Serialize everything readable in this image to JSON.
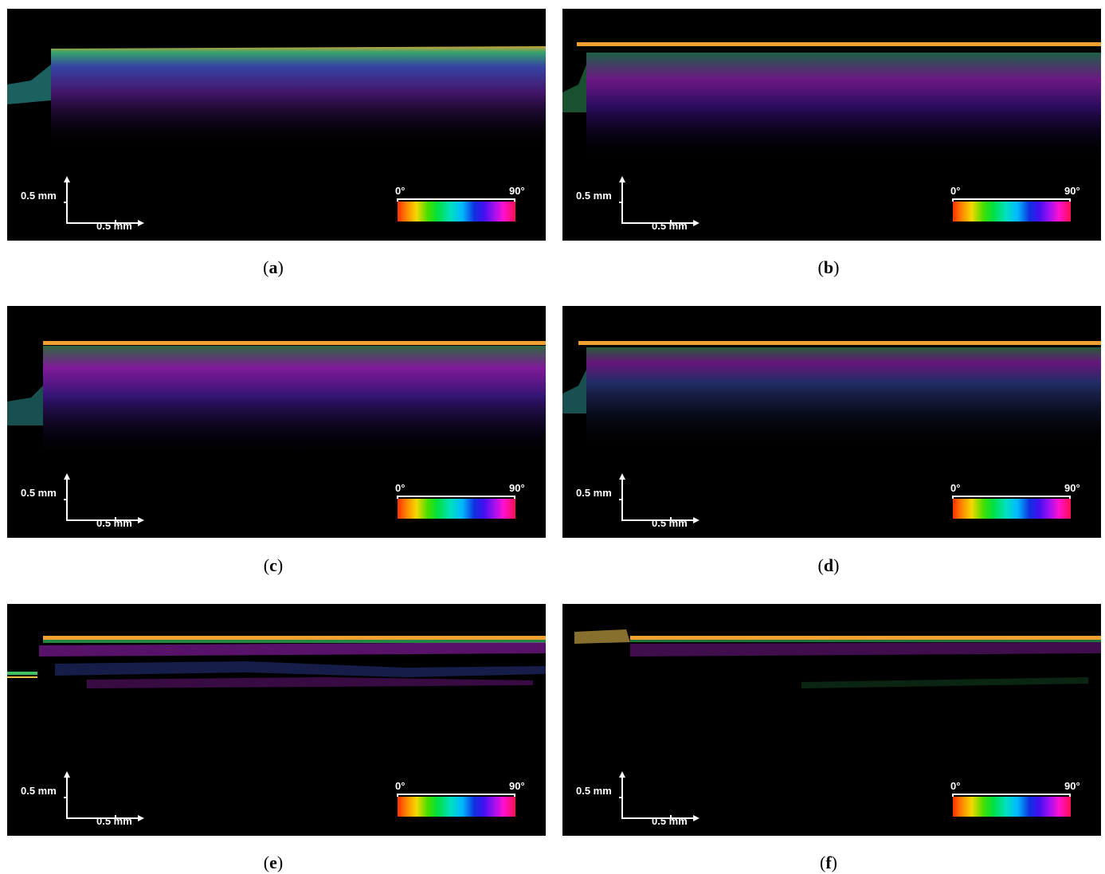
{
  "panels": [
    {
      "id": "a",
      "caption_letter": "a",
      "scale_vertical": "0.5 mm",
      "scale_horizontal": "0.5 mm",
      "colorbar_min": "0°",
      "colorbar_max": "90°"
    },
    {
      "id": "b",
      "caption_letter": "b",
      "scale_vertical": "0.5 mm",
      "scale_horizontal": "0.5 mm",
      "colorbar_min": "0°",
      "colorbar_max": "90°"
    },
    {
      "id": "c",
      "caption_letter": "c",
      "scale_vertical": "0.5 mm",
      "scale_horizontal": "0.5 mm",
      "colorbar_min": "0°",
      "colorbar_max": "90°"
    },
    {
      "id": "d",
      "caption_letter": "d",
      "scale_vertical": "0.5 mm",
      "scale_horizontal": "0.5 mm",
      "colorbar_min": "0°",
      "colorbar_max": "90°"
    },
    {
      "id": "e",
      "caption_letter": "e",
      "scale_vertical": "0.5 mm",
      "scale_horizontal": "0.5 mm",
      "colorbar_min": "0°",
      "colorbar_max": "90°"
    },
    {
      "id": "f",
      "caption_letter": "f",
      "scale_vertical": "0.5 mm",
      "scale_horizontal": "0.5 mm",
      "colorbar_min": "0°",
      "colorbar_max": "90°"
    }
  ],
  "caption_open": "(",
  "caption_close": ")",
  "colors": {
    "background": "#000000",
    "surface_line": "#f0a030",
    "deep_layer": "#a020c0",
    "green_layer": "#30c060"
  }
}
